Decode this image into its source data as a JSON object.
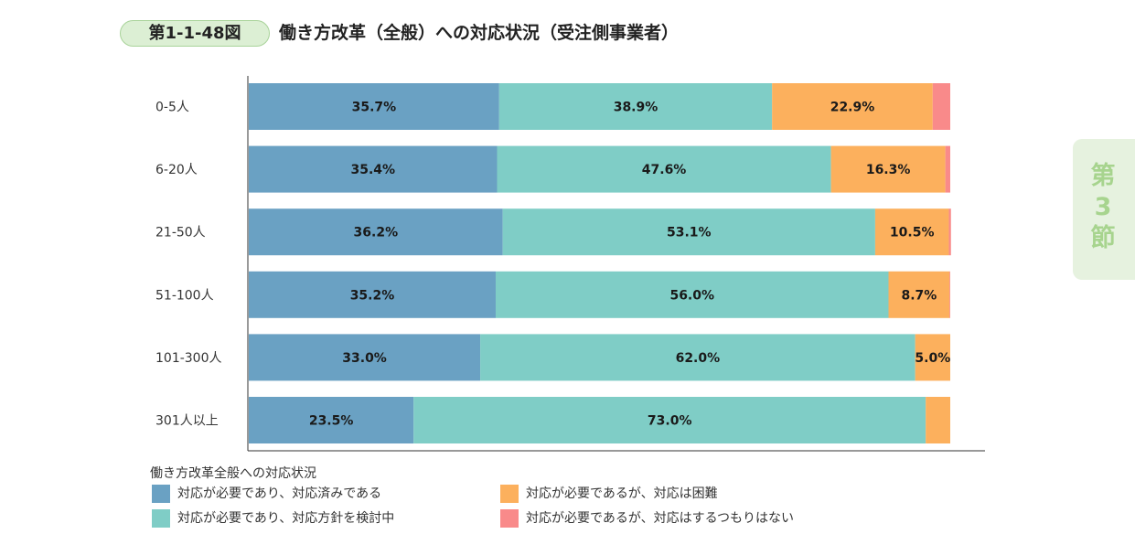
{
  "header": {
    "figure_number": "第1-1-48図",
    "title": "働き方改革（全般）への対応状況（受注側事業者）"
  },
  "side_tab": {
    "text": "第3節"
  },
  "colors": {
    "series1": "#6aa1c3",
    "series2": "#7fcdc6",
    "series3": "#fcb05d",
    "series4": "#f98a8a"
  },
  "chart_data": {
    "type": "bar",
    "orientation": "horizontal",
    "stacked": true,
    "categories": [
      "0-5人",
      "6-20人",
      "21-50人",
      "51-100人",
      "101-300人",
      "301人以上"
    ],
    "series": [
      {
        "name": "対応が必要であり、対応済みである",
        "values": [
          35.7,
          35.4,
          36.2,
          35.2,
          33.0,
          23.5
        ]
      },
      {
        "name": "対応が必要であり、対応方針を検討中",
        "values": [
          38.9,
          47.6,
          53.1,
          56.0,
          62.0,
          73.0
        ]
      },
      {
        "name": "対応が必要であるが、対応は困難",
        "values": [
          22.9,
          16.3,
          10.5,
          8.7,
          5.0,
          3.5
        ]
      },
      {
        "name": "対応が必要であるが、対応はするつもりはない",
        "values": [
          2.5,
          0.7,
          0.3,
          0.1,
          0.0,
          0.0
        ]
      }
    ],
    "data_labels": [
      [
        "35.7%",
        "38.9%",
        "22.9%",
        ""
      ],
      [
        "35.4%",
        "47.6%",
        "16.3%",
        ""
      ],
      [
        "36.2%",
        "53.1%",
        "10.5%",
        ""
      ],
      [
        "35.2%",
        "56.0%",
        "8.7%",
        ""
      ],
      [
        "33.0%",
        "62.0%",
        "5.0%",
        ""
      ],
      [
        "23.5%",
        "73.0%",
        "",
        ""
      ]
    ],
    "xlim": [
      0,
      100
    ],
    "grid": false,
    "legend": {
      "title": "働き方改革全般への対応状況",
      "placement": "bottom"
    }
  }
}
